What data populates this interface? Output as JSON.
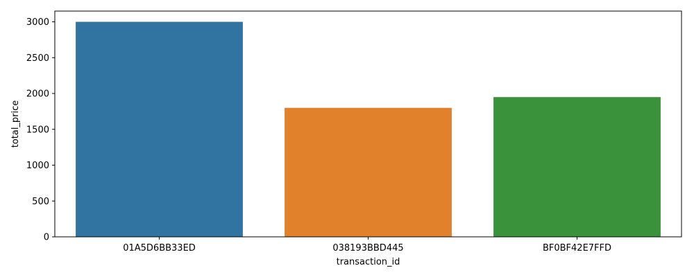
{
  "chart_data": {
    "type": "bar",
    "xlabel": "transaction_id",
    "ylabel": "total_price",
    "categories": [
      "01A5D6BB33ED",
      "038193BBD445",
      "BF0BF42E7FFD"
    ],
    "values": [
      3000,
      1800,
      1950
    ],
    "colors": [
      "#3274a1",
      "#e1812c",
      "#3a923a"
    ],
    "ylim": [
      0,
      3150
    ],
    "yticks": [
      0,
      500,
      1000,
      1500,
      2000,
      2500,
      3000
    ],
    "grid": false,
    "legend": false
  }
}
